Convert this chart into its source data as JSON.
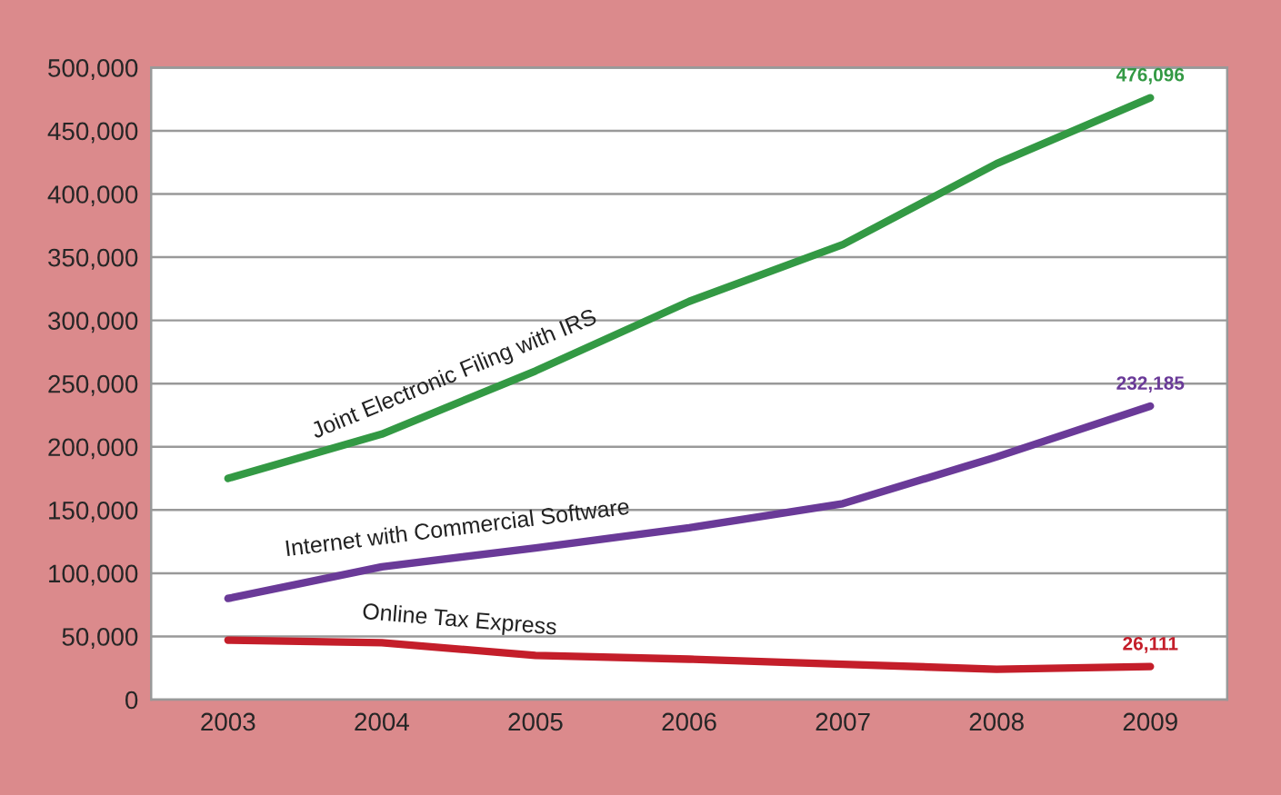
{
  "chart_data": {
    "type": "line",
    "categories": [
      "2003",
      "2004",
      "2005",
      "2006",
      "2007",
      "2008",
      "2009"
    ],
    "series": [
      {
        "name": "Joint Electronic Filing with IRS",
        "color": "#339944",
        "values": [
          175000,
          210000,
          260000,
          315000,
          360000,
          424000,
          476096
        ],
        "value_labels": [
          null,
          null,
          null,
          null,
          null,
          null,
          "476,096"
        ]
      },
      {
        "name": "Internet with Commercial Software",
        "color": "#6a3a98",
        "values": [
          80000,
          105000,
          120000,
          136000,
          155000,
          192000,
          232185
        ],
        "value_labels": [
          null,
          null,
          null,
          null,
          null,
          null,
          "232,185"
        ]
      },
      {
        "name": "Online Tax Express",
        "color": "#c41e2a",
        "values": [
          47000,
          45000,
          35000,
          32000,
          28000,
          24000,
          26111
        ],
        "value_labels": [
          null,
          null,
          null,
          null,
          null,
          null,
          "26,111"
        ]
      }
    ],
    "ylim": [
      0,
      500000
    ],
    "yticks": [
      {
        "value": 0,
        "label": "0"
      },
      {
        "value": 50000,
        "label": "50,000"
      },
      {
        "value": 100000,
        "label": "100,000"
      },
      {
        "value": 150000,
        "label": "150,000"
      },
      {
        "value": 200000,
        "label": "200,000"
      },
      {
        "value": 250000,
        "label": "250,000"
      },
      {
        "value": 300000,
        "label": "300,000"
      },
      {
        "value": 350000,
        "label": "350,000"
      },
      {
        "value": 400000,
        "label": "400,000"
      },
      {
        "value": 450000,
        "label": "450,000"
      },
      {
        "value": 500000,
        "label": "500,000"
      }
    ],
    "grid": "y",
    "legend": false,
    "marker": "none",
    "line_style": "solid"
  }
}
